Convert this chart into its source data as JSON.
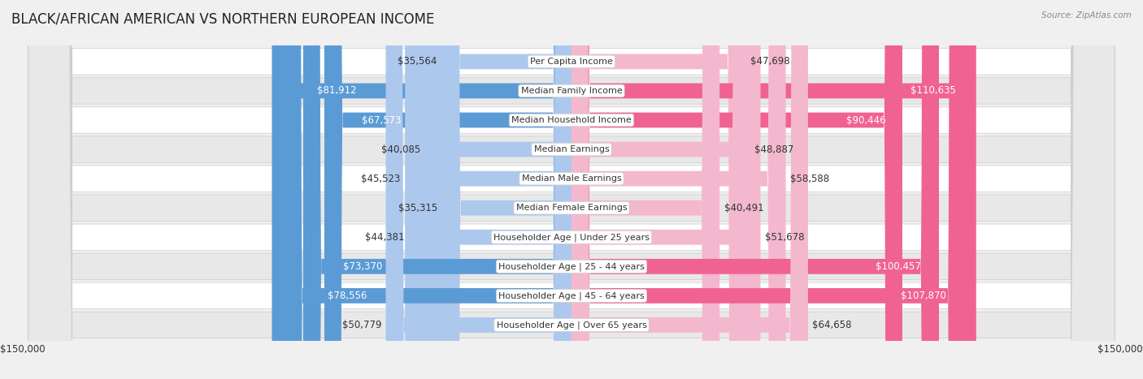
{
  "title": "BLACK/AFRICAN AMERICAN VS NORTHERN EUROPEAN INCOME",
  "source": "Source: ZipAtlas.com",
  "categories": [
    "Per Capita Income",
    "Median Family Income",
    "Median Household Income",
    "Median Earnings",
    "Median Male Earnings",
    "Median Female Earnings",
    "Householder Age | Under 25 years",
    "Householder Age | 25 - 44 years",
    "Householder Age | 45 - 64 years",
    "Householder Age | Over 65 years"
  ],
  "black_values": [
    35564,
    81912,
    67573,
    40085,
    45523,
    35315,
    44381,
    73370,
    78556,
    50779
  ],
  "northern_values": [
    47698,
    110635,
    90446,
    48887,
    58588,
    40491,
    51678,
    100457,
    107870,
    64658
  ],
  "black_color_light": "#adc8ed",
  "black_color_dark": "#5b9bd5",
  "northern_color_light": "#f4b8ce",
  "northern_color_dark": "#f06292",
  "max_val": 150000,
  "bar_height": 0.52,
  "bg_color": "#f0f0f0",
  "row_bg_light": "#ffffff",
  "row_bg_dark": "#e8e8e8",
  "legend_blue": "#adc8ed",
  "legend_pink": "#f4b8ce",
  "label_fontsize": 8.5,
  "title_fontsize": 12,
  "value_threshold_black": 60000,
  "value_threshold_northern": 80000
}
